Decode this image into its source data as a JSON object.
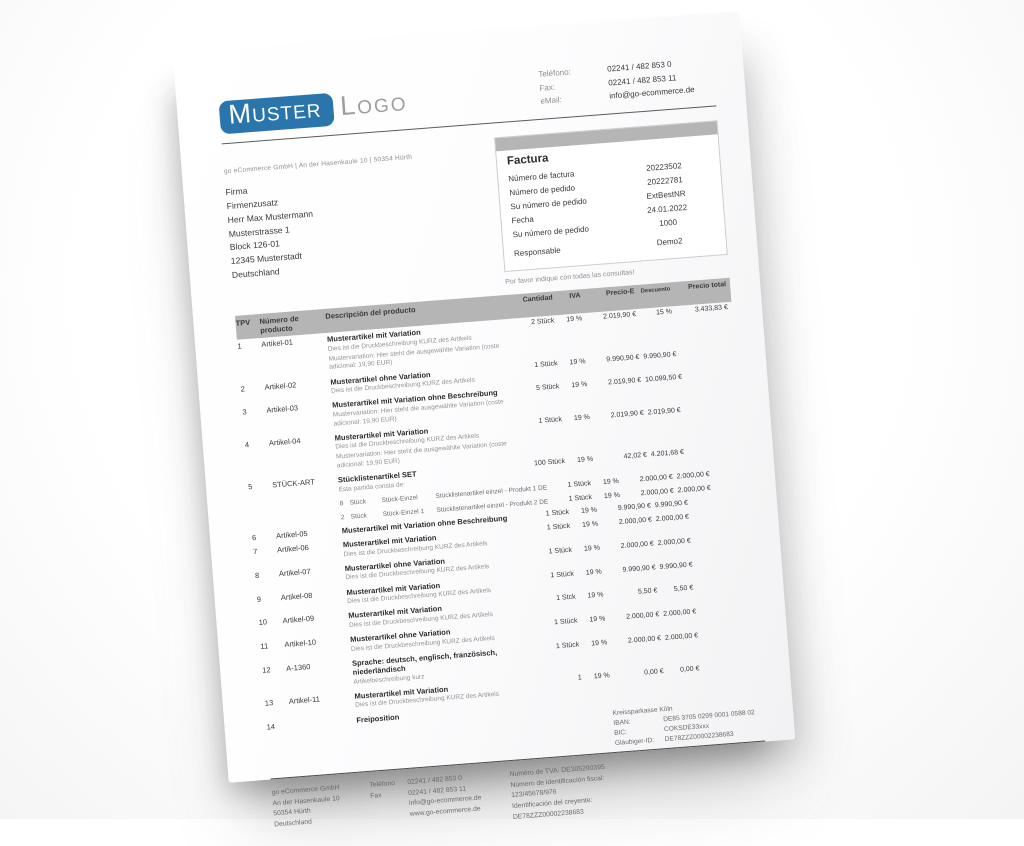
{
  "colors": {
    "accent": "#2b75ad",
    "band": "#b5b5b5"
  },
  "brand": {
    "logo_primary": "Muster",
    "logo_secondary": "Logo"
  },
  "header_contact": {
    "phone_label": "Teléfono:",
    "phone": "02241 / 482 853 0",
    "fax_label": "Fax:",
    "fax": "02241 / 482 853 11",
    "email_label": "eMail:",
    "email": "info@go-ecommerce.de"
  },
  "sender_line": "go eCommerce GmbH | An der Hasenkaule 10 | 50354 Hürth",
  "recipient": {
    "lines": [
      "Firma",
      "Firmenzusatz",
      "Herr Max Mustermann",
      "Musterstrasse 1",
      "Block 126-01",
      "12345 Musterstadt",
      "Deutschland"
    ]
  },
  "invoice_box": {
    "title": "Factura",
    "rows": [
      {
        "label": "Número de factura",
        "value": "20223502"
      },
      {
        "label": "Número de pedido",
        "value": "20222781"
      },
      {
        "label": "Su número de pedido",
        "value": "ExtBestNR"
      },
      {
        "label": "Fecha",
        "value": "24.01.2022"
      },
      {
        "label": "Su número de pedido",
        "value": "1000"
      },
      {
        "label": "Responsable",
        "value": "Demo2"
      }
    ]
  },
  "note": "Por favor indique con todas las consultas!",
  "table": {
    "headers": {
      "pos": "TPV",
      "article": "Número de producto",
      "desc": "Descripción del producto",
      "qty": "Cantidad",
      "vat": "IVA",
      "unit": "Precio-E",
      "discount": "Descuento",
      "total": "Precio total"
    },
    "rows": [
      {
        "pos": "1",
        "article": "Artikel-01",
        "title": "Musterartikel mit Variation",
        "desc1": "Dies ist die Druckbeschreibung KURZ des Artikels",
        "desc2": "Mustervariation: Hier steht die ausgewählte Variation (coste adicional: 19,90 EUR)",
        "qty": "2 Stück",
        "vat": "19 %",
        "unit_price": "2.019,90 €",
        "discount": "15 %",
        "total": "3.433,83 €"
      },
      {
        "pos": "2",
        "article": "Artikel-02",
        "title": "Musterartikel ohne Variation",
        "desc1": "Dies ist die Druckbeschreibung KURZ des Artikels",
        "qty": "1 Stück",
        "vat": "19 %",
        "unit_price": "9.990,90 €",
        "total": "9.990,90 €"
      },
      {
        "pos": "3",
        "article": "Artikel-03",
        "title": "Musterartikel mit Variation ohne Beschreibung",
        "desc1": "Mustervariation: Hier steht die ausgewählte Variation (coste adicional: 19,90 EUR)",
        "qty": "5 Stück",
        "vat": "19 %",
        "unit_price": "2.019,90 €",
        "total": "10.099,50 €"
      },
      {
        "pos": "4",
        "article": "Artikel-04",
        "title": "Musterartikel mit Variation",
        "desc1": "Dies ist die Druckbeschreibung KURZ des Artikels",
        "desc2": "Mustervariation: Hier steht die ausgewählte Variation (coste adicional: 19,90 EUR)",
        "qty": "1 Stück",
        "vat": "19 %",
        "unit_price": "2.019,90 €",
        "total": "2.019,90 €"
      },
      {
        "pos": "5",
        "article": "STÜCK-ART",
        "title": "Stücklistenartikel SET",
        "sub_intro": "Esta partida consta de:",
        "qty": "100 Stück",
        "vat": "19 %",
        "unit_price": "42,02 €",
        "total": "4.201,68 €",
        "components": [
          {
            "count": "8",
            "unit": "Stück",
            "code": "Stück-Einzel",
            "name": "Stücklistenartikel einzel - Produkt 1 DE",
            "qty": "1 Stück",
            "vat": "19 %",
            "unit_price": "2.000,00 €",
            "total": "2.000,00 €"
          },
          {
            "count": "2",
            "unit": "Stück",
            "code": "Stück-Einzel 1",
            "name": "Stücklistenartikel einzel - Produkt 2 DE",
            "qty": "1 Stück",
            "vat": "19 %",
            "unit_price": "2.000,00 €",
            "total": "2.000,00 €"
          }
        ]
      },
      {
        "pos": "6",
        "article": "Artikel-05",
        "title": "Musterartikel mit Variation ohne Beschreibung",
        "qty": "1 Stück",
        "vat": "19 %",
        "unit_price": "9.990,90 €",
        "total": "9.990,90 €"
      },
      {
        "pos": "7",
        "article": "Artikel-06",
        "title": "Musterartikel mit Variation",
        "desc1": "Dies ist die Druckbeschreibung KURZ des Artikels",
        "qty": "1 Stück",
        "vat": "19 %",
        "unit_price": "2.000,00 €",
        "total": "2.000,00 €"
      },
      {
        "pos": "8",
        "article": "Artikel-07",
        "title": "Musterartikel ohne Variation",
        "desc1": "Dies ist die Druckbeschreibung KURZ des Artikels",
        "qty": "1 Stück",
        "vat": "19 %",
        "unit_price": "2.000,00 €",
        "total": "2.000,00 €"
      },
      {
        "pos": "9",
        "article": "Artikel-08",
        "title": "Musterartikel mit Variation",
        "desc1": "Dies ist die Druckbeschreibung KURZ des Artikels",
        "qty": "1 Stück",
        "vat": "19 %",
        "unit_price": "9.990,90 €",
        "total": "9.990,90 €"
      },
      {
        "pos": "10",
        "article": "Artikel-09",
        "title": "Musterartikel mit Variation",
        "desc1": "Dies ist die Druckbeschreibung KURZ des Artikels",
        "qty": "1 Stck",
        "vat": "19 %",
        "unit_price": "5,50 €",
        "total": "5,50 €"
      },
      {
        "pos": "11",
        "article": "Artikel-10",
        "title": "Musterartikel ohne Variation",
        "desc1": "Dies ist die Druckbeschreibung KURZ des Artikels",
        "qty": "1 Stück",
        "vat": "19 %",
        "unit_price": "2.000,00 €",
        "total": "2.000,00 €"
      },
      {
        "pos": "12",
        "article": "A-1360",
        "title": "Sprache: deutsch, englisch, französisch, niederländisch",
        "desc1": "Artikelbeschreibung kurz",
        "qty": "1 Stück",
        "vat": "19 %",
        "unit_price": "2.000,00 €",
        "total": "2.000,00 €"
      },
      {
        "pos": "13",
        "article": "Artikel-11",
        "title": "Musterartikel mit Variation",
        "desc1": "Dies ist die Druckbeschreibung KURZ des Artikels",
        "qty": "1",
        "vat": "19 %",
        "unit_price": "0,00 €",
        "total": "0,00 €"
      },
      {
        "pos": "14",
        "article": "",
        "title": "Freiposition"
      }
    ]
  },
  "bank": {
    "name": "Kreissparkasse Köln",
    "iban_label": "IBAN:",
    "iban": "DE85 3705 0299 0001 0588 02",
    "bic_label": "BIC:",
    "bic": "COKSDE33xxx",
    "creditor_label": "Gläubiger-ID:",
    "creditor": "DE78ZZZ00002238683"
  },
  "footer": {
    "address": [
      "go eCommerce GmbH",
      "An der Hasenkaule 10",
      "50354 Hürth",
      "Deutschland"
    ],
    "contact": [
      {
        "label": "Teléfono",
        "value": "02241 / 482 853 0"
      },
      {
        "label": "Fax",
        "value": "02241 / 482 853 11"
      },
      {
        "label": "",
        "value": "info@go-ecommerce.de"
      },
      {
        "label": "",
        "value": "www.go-ecommerce.de"
      }
    ],
    "tax": [
      "Numéro de TVA: DE305290395",
      "Número de identificación fiscal:",
      "123/45678/976",
      "Identificación del creyente:",
      "DE78ZZZ00002238683"
    ]
  }
}
